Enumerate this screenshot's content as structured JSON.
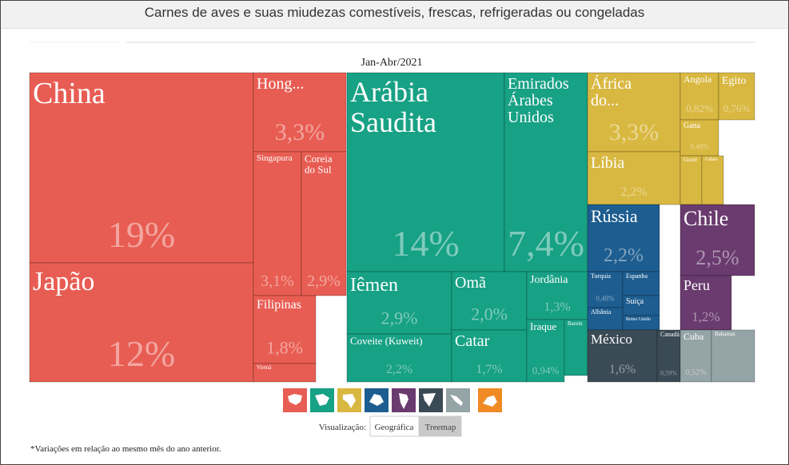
{
  "ui": {
    "header": "Carnes de aves e suas miudezas comestíveis, frescas, refrigeradas ou congeladas",
    "view_label": "Visualização:",
    "view_options": [
      "Geográfica",
      "Treemap"
    ],
    "footnote": "*Variações em relação ao mesmo mês do ano anterior."
  },
  "chart_data": {
    "type": "treemap",
    "subtitle": "Jan-Abr/2021",
    "groups": [
      {
        "color": "#e85d53",
        "names": [
          "China",
          "Japão",
          "Hong...",
          "Singapura",
          "Coreia do Sul",
          "Filipinas",
          "Vietnã"
        ],
        "values": [
          19,
          12,
          3.3,
          3.1,
          2.9,
          1.8,
          0.4
        ],
        "value_labels": [
          "19%",
          "12%",
          "3,3%",
          "3,1%",
          "2,9%",
          "1,8%",
          null
        ]
      },
      {
        "color": "#17a185",
        "names": [
          "Arábia Saudita",
          "Emirados Árabes Unidos",
          "Iêmen",
          "Omã",
          "Jordânia",
          "Coveite (Kuweit)",
          "Catar",
          "Iraque",
          "Barein"
        ],
        "values": [
          14,
          7.4,
          2.9,
          2.0,
          1.3,
          2.2,
          1.7,
          0.94,
          0.6
        ],
        "value_labels": [
          "14%",
          "7,4%",
          "2,9%",
          "2,0%",
          "1,3%",
          "2,2%",
          "1,7%",
          "0,94%",
          null
        ]
      },
      {
        "color": "#d9b841",
        "names": [
          "África do...",
          "Líbia",
          "Angola",
          "Egito",
          "Gana",
          "Guiné",
          "Gabão"
        ],
        "values": [
          3.3,
          2.2,
          0.82,
          0.76,
          0.48,
          0.3,
          0.3
        ],
        "value_labels": [
          "3,3%",
          "2,2%",
          "0,82%",
          "0,76%",
          "0,48%",
          null,
          null
        ]
      },
      {
        "color": "#1d5d90",
        "names": [
          "Rússia",
          "Turquia",
          "Espanha",
          "Suíça",
          "Albânia",
          "Reino Unido"
        ],
        "values": [
          2.2,
          0.48,
          0.4,
          0.35,
          0.3,
          0.2
        ],
        "value_labels": [
          "2,2%",
          "0,48%",
          null,
          null,
          null,
          null
        ]
      },
      {
        "color": "#6a3b6f",
        "names": [
          "Chile",
          "Peru"
        ],
        "values": [
          2.5,
          1.2
        ],
        "value_labels": [
          "2,5%",
          "1,2%"
        ]
      },
      {
        "color": "#3b4b56",
        "names": [
          "México",
          "Canadá"
        ],
        "values": [
          1.6,
          0.59
        ],
        "value_labels": [
          "1,6%",
          "0,59%"
        ]
      },
      {
        "color": "#95a4a6",
        "names": [
          "Cuba",
          "Bahamas"
        ],
        "values": [
          0.52,
          0.2
        ],
        "value_labels": [
          "0,52%",
          null
        ]
      }
    ]
  }
}
